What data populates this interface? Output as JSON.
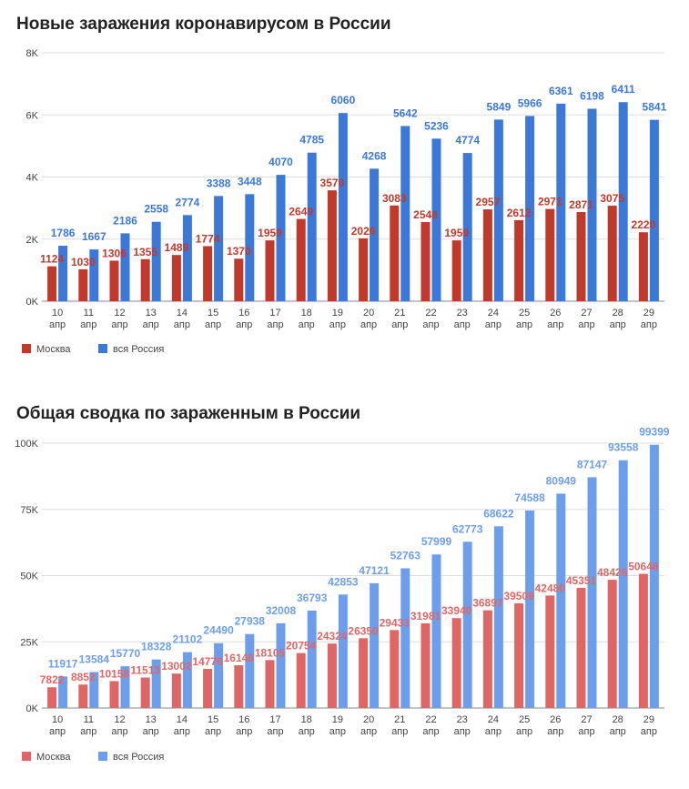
{
  "chart_data": [
    {
      "type": "bar",
      "title": "Новые заражения коронавирусом в России",
      "categories": [
        "10 апр",
        "11 апр",
        "12 апр",
        "13 апр",
        "14 апр",
        "15 апр",
        "16 апр",
        "17 апр",
        "18 апр",
        "19 апр",
        "20 апр",
        "21 апр",
        "22 апр",
        "23 апр",
        "24 апр",
        "25 апр",
        "26 апр",
        "27 апр",
        "28 апр",
        "29 апр"
      ],
      "category_lines": [
        [
          "10",
          "апр"
        ],
        [
          "11",
          "апр"
        ],
        [
          "12",
          "апр"
        ],
        [
          "13",
          "апр"
        ],
        [
          "14",
          "апр"
        ],
        [
          "15",
          "апр"
        ],
        [
          "16",
          "апр"
        ],
        [
          "17",
          "апр"
        ],
        [
          "18",
          "апр"
        ],
        [
          "19",
          "апр"
        ],
        [
          "20",
          "апр"
        ],
        [
          "21",
          "апр"
        ],
        [
          "22",
          "апр"
        ],
        [
          "23",
          "апр"
        ],
        [
          "24",
          "апр"
        ],
        [
          "25",
          "апр"
        ],
        [
          "26",
          "апр"
        ],
        [
          "27",
          "апр"
        ],
        [
          "28",
          "апр"
        ],
        [
          "29",
          "апр"
        ]
      ],
      "series": [
        {
          "name": "Москва",
          "color": "#c0392b",
          "label_color": "#c0392b",
          "values": [
            1124,
            1030,
            1306,
            1355,
            1489,
            1774,
            1370,
            1959,
            2649,
            3570,
            2026,
            3083,
            2548,
            1959,
            2957,
            2612,
            2971,
            2871,
            3075,
            2220
          ]
        },
        {
          "name": "вся Россия",
          "color": "#3b78d8",
          "label_color": "#3b78d8",
          "values": [
            1786,
            1667,
            2186,
            2558,
            2774,
            3388,
            3448,
            4070,
            4785,
            6060,
            4268,
            5642,
            5236,
            4774,
            5849,
            5966,
            6361,
            6198,
            6411,
            5841
          ]
        }
      ],
      "yticks": [
        0,
        2000,
        4000,
        6000,
        8000
      ],
      "ytick_labels": [
        "0K",
        "2K",
        "4K",
        "6K",
        "8K"
      ],
      "ylim": [
        0,
        8000
      ],
      "xlabel": "",
      "ylabel": "",
      "grid": true,
      "legend": "bottom-left"
    },
    {
      "type": "bar",
      "title": "Общая сводка по зараженным в России",
      "categories": [
        "10 апр",
        "11 апр",
        "12 апр",
        "13 апр",
        "14 апр",
        "15 апр",
        "16 апр",
        "17 апр",
        "18 апр",
        "19 апр",
        "20 апр",
        "21 апр",
        "22 апр",
        "23 апр",
        "24 апр",
        "25 апр",
        "26 апр",
        "27 апр",
        "28 апр",
        "29 апр"
      ],
      "category_lines": [
        [
          "10",
          "апр"
        ],
        [
          "11",
          "апр"
        ],
        [
          "12",
          "апр"
        ],
        [
          "13",
          "апр"
        ],
        [
          "14",
          "апр"
        ],
        [
          "15",
          "апр"
        ],
        [
          "16",
          "апр"
        ],
        [
          "17",
          "апр"
        ],
        [
          "18",
          "апр"
        ],
        [
          "19",
          "апр"
        ],
        [
          "20",
          "апр"
        ],
        [
          "21",
          "апр"
        ],
        [
          "22",
          "апр"
        ],
        [
          "23",
          "апр"
        ],
        [
          "24",
          "апр"
        ],
        [
          "25",
          "апр"
        ],
        [
          "26",
          "апр"
        ],
        [
          "27",
          "апр"
        ],
        [
          "28",
          "апр"
        ],
        [
          "29",
          "апр"
        ]
      ],
      "series": [
        {
          "name": "Москва",
          "color": "#e06666",
          "label_color": "#e06666",
          "values": [
            7822,
            8852,
            10158,
            11513,
            13002,
            14776,
            16146,
            18105,
            20754,
            24324,
            26350,
            29433,
            31981,
            33940,
            36897,
            39509,
            42480,
            45351,
            48426,
            50646
          ]
        },
        {
          "name": "вся Россия",
          "color": "#6d9eeb",
          "label_color": "#6d9eeb",
          "values": [
            11917,
            13584,
            15770,
            18328,
            21102,
            24490,
            27938,
            32008,
            36793,
            42853,
            47121,
            52763,
            57999,
            62773,
            68622,
            74588,
            80949,
            87147,
            93558,
            99399
          ]
        }
      ],
      "yticks": [
        0,
        25000,
        50000,
        75000,
        100000
      ],
      "ytick_labels": [
        "0K",
        "25K",
        "50K",
        "75K",
        "100K"
      ],
      "ylim": [
        0,
        100000
      ],
      "xlabel": "",
      "ylabel": "",
      "grid": true,
      "legend": "bottom-left"
    }
  ]
}
